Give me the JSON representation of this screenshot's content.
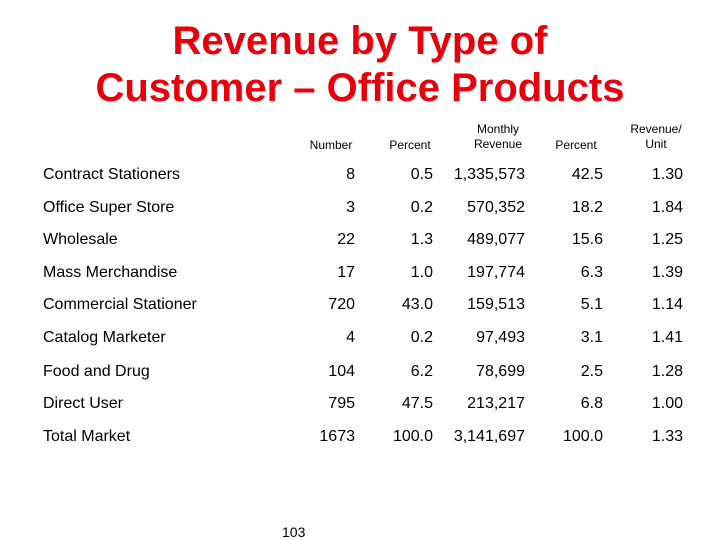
{
  "slide": {
    "title_line1": "Revenue by Type of",
    "title_line2": "Customer – Office Products",
    "page_number": "103"
  },
  "table": {
    "headers": {
      "number": "Number",
      "percent": "Percent",
      "monthly_revenue_line1": "Monthly",
      "monthly_revenue_line2": "Revenue",
      "revenue_percent": "Percent",
      "revenue_unit_line1": "Revenue/",
      "revenue_unit_line2": "Unit"
    },
    "rows": [
      {
        "label": "Contract Stationers",
        "number": "8",
        "percent": "0.5",
        "monthly_revenue": "1,335,573",
        "revenue_percent": "42.5",
        "revenue_unit": "1.30"
      },
      {
        "label": "Office Super Store",
        "number": "3",
        "percent": "0.2",
        "monthly_revenue": "570,352",
        "revenue_percent": "18.2",
        "revenue_unit": "1.84"
      },
      {
        "label": "Wholesale",
        "number": "22",
        "percent": "1.3",
        "monthly_revenue": "489,077",
        "revenue_percent": "15.6",
        "revenue_unit": "1.25"
      },
      {
        "label": "Mass Merchandise",
        "number": "17",
        "percent": "1.0",
        "monthly_revenue": "197,774",
        "revenue_percent": "6.3",
        "revenue_unit": "1.39"
      },
      {
        "label": "Commercial Stationer",
        "number": "720",
        "percent": "43.0",
        "monthly_revenue": "159,513",
        "revenue_percent": "5.1",
        "revenue_unit": "1.14"
      },
      {
        "label": "Catalog Marketer",
        "number": "4",
        "percent": "0.2",
        "monthly_revenue": "97,493",
        "revenue_percent": "3.1",
        "revenue_unit": "1.41"
      },
      {
        "label": "Food and Drug",
        "number": "104",
        "percent": "6.2",
        "monthly_revenue": "78,699",
        "revenue_percent": "2.5",
        "revenue_unit": "1.28"
      },
      {
        "label": "Direct User",
        "number": "795",
        "percent": "47.5",
        "monthly_revenue": "213,217",
        "revenue_percent": "6.8",
        "revenue_unit": "1.00"
      },
      {
        "label": "Total Market",
        "number": "1673",
        "percent": "100.0",
        "monthly_revenue": "3,141,697",
        "revenue_percent": "100.0",
        "revenue_unit": "1.33"
      }
    ]
  },
  "colors": {
    "title": "#e8000b",
    "background": "#ffffff",
    "text": "#000000"
  }
}
